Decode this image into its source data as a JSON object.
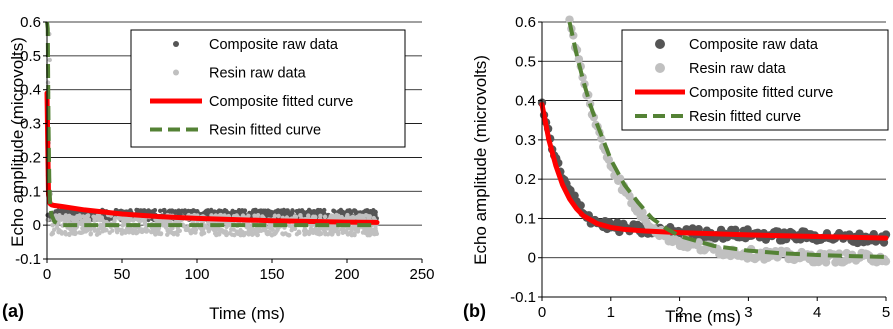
{
  "chart_data": [
    {
      "type": "scatter",
      "panel_label": "(a)",
      "xlabel": "Time (ms)",
      "ylabel": "Echo amplitude (microvolts)",
      "xlim": [
        0,
        250
      ],
      "ylim": [
        -0.1,
        0.6
      ],
      "xticks": [
        "0",
        "50",
        "100",
        "150",
        "200",
        "250"
      ],
      "yticks": [
        "-0.1",
        "0",
        "0.1",
        "0.2",
        "0.3",
        "0.4",
        "0.5",
        "0.6"
      ],
      "grid": "horizontal",
      "legend_position": "top-right",
      "series": [
        {
          "name": "Composite raw data",
          "kind": "points",
          "color": "#555555",
          "x_range": [
            0,
            220
          ],
          "y_range": [
            0.02,
            0.05
          ],
          "settles_to": 0.03
        },
        {
          "name": "Resin  raw data",
          "kind": "points",
          "color": "#c0c0c0",
          "x_range": [
            0,
            220
          ],
          "y_range": [
            -0.02,
            0.04
          ],
          "settles_to": 0.0
        },
        {
          "name": "Composite fitted curve",
          "kind": "line",
          "color": "#ff0000",
          "style": "solid",
          "x": [
            0,
            1,
            2,
            3,
            5,
            10,
            25,
            50,
            75,
            100,
            150,
            200,
            220
          ],
          "y": [
            0.39,
            0.09,
            0.064,
            0.06,
            0.058,
            0.055,
            0.045,
            0.033,
            0.025,
            0.02,
            0.013,
            0.009,
            0.008
          ]
        },
        {
          "name": "Resin fitted curve",
          "kind": "line",
          "color": "#548235",
          "style": "dashed",
          "x": [
            0,
            0.5,
            1,
            1.5,
            2,
            3,
            5,
            10,
            50,
            100,
            150,
            200,
            220
          ],
          "y": [
            0.6,
            0.58,
            0.3,
            0.14,
            0.07,
            0.03,
            0.01,
            0.0,
            0.0,
            0.0,
            0.0,
            0.0,
            0.0
          ]
        }
      ]
    },
    {
      "type": "scatter",
      "panel_label": "(b)",
      "xlabel": "Time (ms)",
      "ylabel": "Echo amplitude (microvolts)",
      "xlim": [
        0,
        5
      ],
      "ylim": [
        -0.1,
        0.6
      ],
      "xticks": [
        "0",
        "1",
        "2",
        "3",
        "4",
        "5"
      ],
      "yticks": [
        "-0.1",
        "0",
        "0.1",
        "0.2",
        "0.3",
        "0.4",
        "0.5",
        "0.6"
      ],
      "grid": "horizontal",
      "legend_position": "top-right",
      "series": [
        {
          "name": "Composite raw data",
          "kind": "points",
          "color": "#555555",
          "x": [
            0.0,
            0.1,
            0.2,
            0.3,
            0.4,
            0.5,
            0.6,
            0.7,
            0.8,
            0.9,
            1.0,
            1.2,
            1.5,
            2.0,
            2.5,
            3.0,
            3.5,
            4.0,
            4.5,
            5.0
          ],
          "y": [
            0.39,
            0.31,
            0.25,
            0.2,
            0.17,
            0.14,
            0.12,
            0.1,
            0.09,
            0.085,
            0.08,
            0.075,
            0.07,
            0.065,
            0.06,
            0.06,
            0.055,
            0.055,
            0.05,
            0.05
          ]
        },
        {
          "name": "Resin  raw data",
          "kind": "points",
          "color": "#c0c0c0",
          "x": [
            0.4,
            0.5,
            0.6,
            0.7,
            0.8,
            0.9,
            1.0,
            1.2,
            1.4,
            1.6,
            1.8,
            2.0,
            2.5,
            3.0,
            3.5,
            4.0,
            4.5,
            5.0
          ],
          "y": [
            0.6,
            0.53,
            0.45,
            0.39,
            0.33,
            0.28,
            0.24,
            0.17,
            0.12,
            0.08,
            0.055,
            0.04,
            0.02,
            0.01,
            0.005,
            0.0,
            0.0,
            0.0
          ]
        },
        {
          "name": "Composite fitted curve",
          "kind": "line",
          "color": "#ff0000",
          "style": "solid",
          "x": [
            0.0,
            0.1,
            0.2,
            0.3,
            0.4,
            0.5,
            0.6,
            0.8,
            1.0,
            1.2,
            1.5,
            2.0,
            2.5,
            3.0,
            3.5,
            4.0,
            4.5,
            5.0
          ],
          "y": [
            0.39,
            0.3,
            0.235,
            0.185,
            0.15,
            0.125,
            0.107,
            0.087,
            0.077,
            0.072,
            0.068,
            0.064,
            0.061,
            0.058,
            0.056,
            0.054,
            0.052,
            0.05
          ]
        },
        {
          "name": "Resin fitted curve",
          "kind": "line",
          "color": "#548235",
          "style": "dashed",
          "x": [
            0.4,
            0.5,
            0.6,
            0.7,
            0.8,
            1.0,
            1.2,
            1.4,
            1.6,
            1.8,
            2.0,
            2.5,
            3.0,
            3.5,
            4.0,
            4.5,
            5.0
          ],
          "y": [
            0.6,
            0.52,
            0.45,
            0.39,
            0.34,
            0.25,
            0.185,
            0.14,
            0.1,
            0.075,
            0.055,
            0.03,
            0.018,
            0.011,
            0.007,
            0.004,
            0.002
          ]
        }
      ]
    }
  ]
}
